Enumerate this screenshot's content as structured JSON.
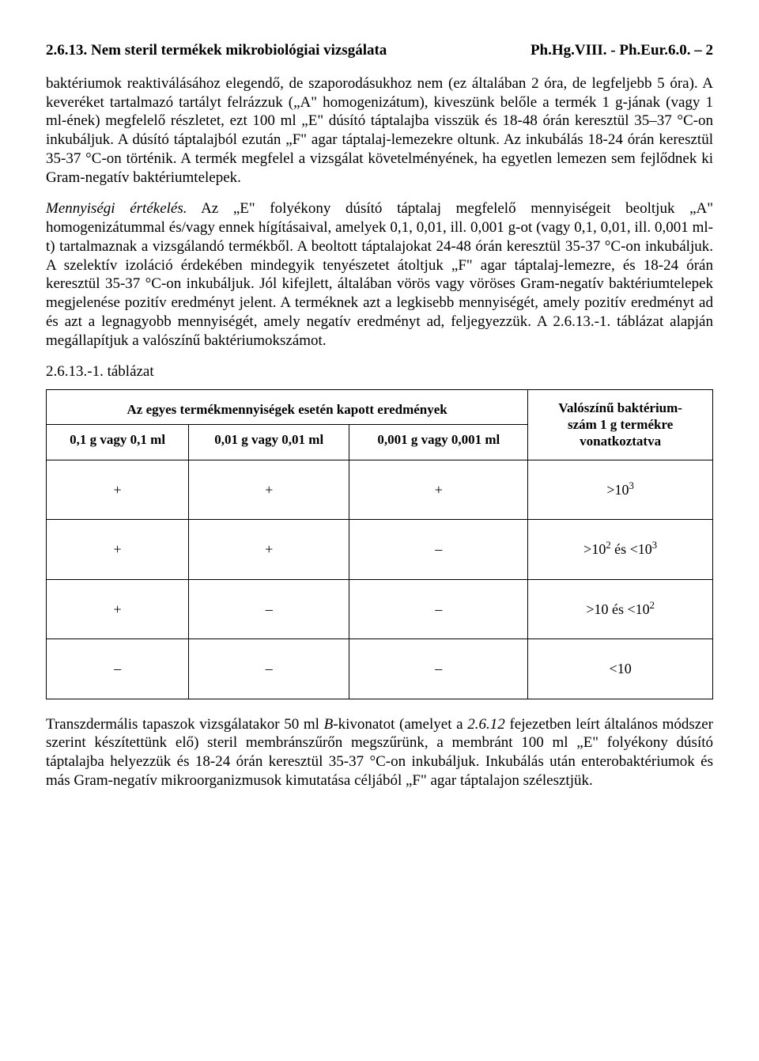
{
  "header": {
    "left": "2.6.13. Nem steril termékek mikrobiológiai vizsgálata",
    "right": "Ph.Hg.VIII. - Ph.Eur.6.0. – 2"
  },
  "paragraphs": {
    "p1": "baktériumok reaktiválásához elegendő, de szaporodásukhoz nem (ez általában 2 óra, de legfeljebb 5 óra). A keveréket tartalmazó tartályt felrázzuk („A\" homogenizátum), kiveszünk belőle a termék 1 g-jának (vagy 1 ml-ének) megfelelő részletet, ezt 100 ml „E\" dúsító táptalajba visszük és 18-48 órán keresztül 35–37 °C-on inkubáljuk. A dúsító táptalajból ezután „F\" agar táptalaj-lemezekre oltunk. Az inkubálás 18-24 órán keresztül 35-37 °C-on történik. A termék megfelel a vizsgálat követelményének, ha egyetlen lemezen sem fejlődnek ki Gram-negatív baktériumtelepek.",
    "p2_italic": "Mennyiségi értékelés.",
    "p2_rest": " Az „E\" folyékony dúsító táptalaj megfelelő mennyiségeit beoltjuk „A\" homogenizátummal és/vagy ennek hígításaival, amelyek 0,1, 0,01, ill. 0,001 g-ot (vagy 0,1, 0,01, ill. 0,001 ml-t) tartalmaznak a vizsgálandó termékből. A beoltott táptalajokat 24-48 órán keresztül 35-37 °C-on inkubáljuk. A szelektív izoláció érdekében mindegyik tenyészetet átoltjuk „F\" agar táptalaj-lemezre, és 18-24 órán keresztül 35-37 °C-on inkubáljuk. Jól kifejlett, általában vörös vagy vöröses Gram-negatív baktériumtelepek megjelenése pozitív eredményt jelent. A terméknek azt a legkisebb mennyiségét, amely pozitív eredményt ad és azt a legnagyobb mennyiségét, amely negatív eredményt ad, feljegyezzük. A 2.6.13.-1. táblázat alapján megállapítjuk a valószínű baktériumokszámot.",
    "table_caption": "2.6.13.-1. táblázat",
    "p3_a": "Transzdermális tapaszok vizsgálatakor 50 ml ",
    "p3_b_italic": "B",
    "p3_c": "-kivonatot (amelyet a ",
    "p3_d_italic": "2.6.12",
    "p3_e": " fejezetben leírt általános módszer szerint készítettünk elő) steril membránszűrőn megszűrünk, a membránt 100 ml „E\" folyékony dúsító táptalajba helyezzük és 18-24 órán keresztül 35-37 °C-on inkubáljuk. Inkubálás után enterobaktériumok és más Gram-negatív mikroorganizmusok kimutatása céljából „F\" agar táptalajon szélesztjük."
  },
  "table": {
    "header_wide": "Az egyes termékmennyiségek esetén kapott eredmények",
    "header_right_l1": "Valószínű baktérium-",
    "header_right_l2": "szám 1 g termékre",
    "header_right_l3": "vonatkoztatva",
    "sub1": "0,1 g vagy 0,1 ml",
    "sub2": "0,01 g vagy 0,01 ml",
    "sub3": "0,001 g vagy 0,001 ml",
    "rows": [
      {
        "c1": "+",
        "c2": "+",
        "c3": "+",
        "r_pre": ">10",
        "r_sup": "3",
        "r_post": ""
      },
      {
        "c1": "+",
        "c2": "+",
        "c3": "–",
        "r_pre": ">10",
        "r_sup": "2",
        "r_mid": " és <10",
        "r_sup2": "3"
      },
      {
        "c1": "+",
        "c2": "–",
        "c3": "–",
        "r_pre": ">10 és <10",
        "r_sup": "2",
        "r_post": ""
      },
      {
        "c1": "–",
        "c2": "–",
        "c3": "–",
        "r_pre": "<10",
        "r_sup": "",
        "r_post": ""
      }
    ]
  }
}
